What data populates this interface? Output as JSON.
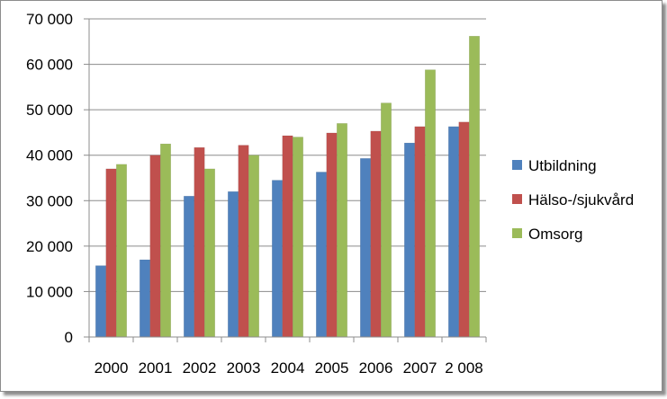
{
  "chart_data": {
    "type": "bar",
    "categories": [
      "2000",
      "2001",
      "2002",
      "2003",
      "2004",
      "2005",
      "2006",
      "2007",
      "2 008"
    ],
    "series": [
      {
        "name": "Utbildning",
        "color": "#4f81bd",
        "values": [
          15700,
          17000,
          31000,
          32000,
          34500,
          36300,
          39300,
          42700,
          46300
        ]
      },
      {
        "name": "Hälso-/sjukvård",
        "color": "#c0504d",
        "values": [
          37000,
          40000,
          41700,
          42200,
          44300,
          44900,
          45300,
          46300,
          47300
        ]
      },
      {
        "name": "Omsorg",
        "color": "#9bbb59",
        "values": [
          38000,
          42500,
          37000,
          40000,
          44000,
          47000,
          51500,
          58800,
          66200
        ]
      }
    ],
    "y_ticks": [
      "0",
      "10 000",
      "20 000",
      "30 000",
      "40 000",
      "50 000",
      "60 000",
      "70 000"
    ],
    "ylim": [
      0,
      70000
    ],
    "y_step": 10000,
    "grid": true,
    "legend_position": "right",
    "title": "",
    "xlabel": "",
    "ylabel": ""
  }
}
